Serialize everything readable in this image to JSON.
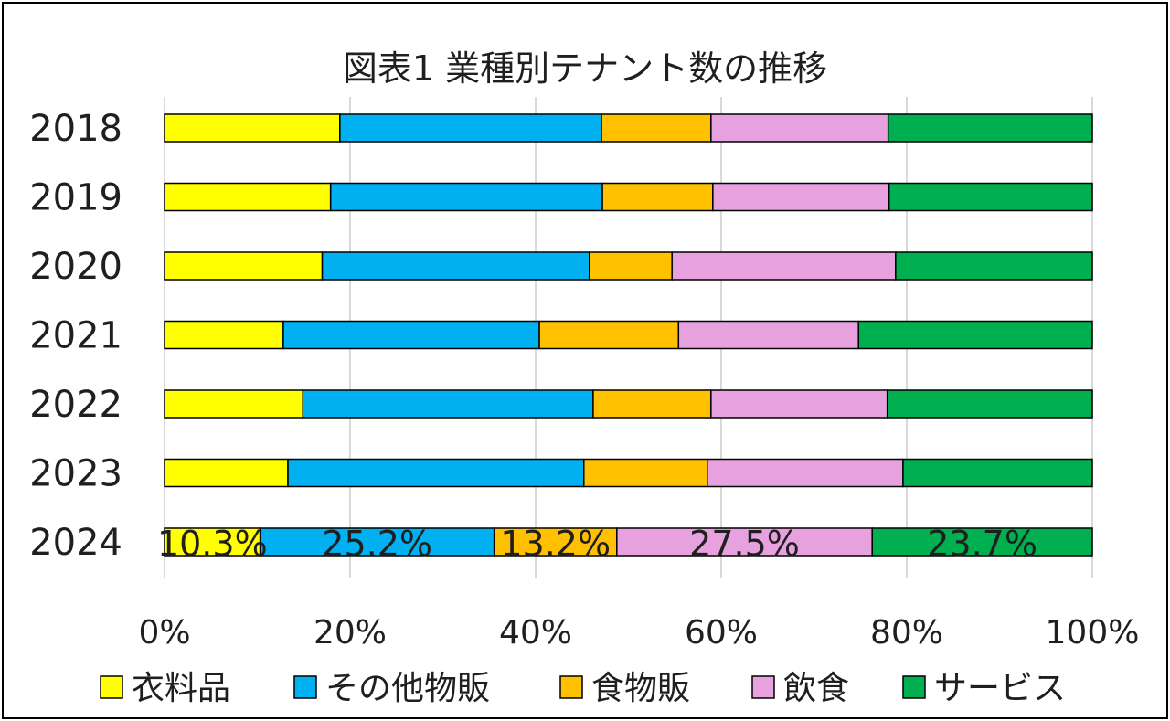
{
  "chart_data": {
    "type": "bar",
    "orientation": "horizontal",
    "stacked": "percent",
    "title": "図表1 業種別テナント数の推移",
    "categories": [
      "2018",
      "2019",
      "2020",
      "2021",
      "2022",
      "2023",
      "2024"
    ],
    "series": [
      {
        "name": "衣料品",
        "color": "#FFFF00",
        "values": [
          18.9,
          17.9,
          17.0,
          12.8,
          14.9,
          13.3,
          10.3
        ]
      },
      {
        "name": "その他物販",
        "color": "#00B0F0",
        "values": [
          28.2,
          29.3,
          28.8,
          27.6,
          31.3,
          31.9,
          25.2
        ]
      },
      {
        "name": "食物販",
        "color": "#FFC000",
        "values": [
          11.8,
          11.9,
          8.9,
          15.0,
          12.7,
          13.3,
          13.2
        ]
      },
      {
        "name": "飲食",
        "color": "#E6A1DE",
        "values": [
          19.1,
          19.0,
          24.1,
          19.4,
          19.0,
          21.1,
          27.5
        ]
      },
      {
        "name": "サービス",
        "color": "#00B050",
        "values": [
          22.0,
          21.9,
          21.2,
          25.2,
          22.1,
          20.4,
          23.7
        ]
      }
    ],
    "data_labels": {
      "2024": [
        "10.3%",
        "25.2%",
        "13.2%",
        "27.5%",
        "23.7%"
      ]
    },
    "x_ticks": [
      "0%",
      "20%",
      "40%",
      "60%",
      "80%",
      "100%"
    ],
    "xlim": [
      0,
      100
    ],
    "grid": true,
    "legend_position": "bottom"
  }
}
